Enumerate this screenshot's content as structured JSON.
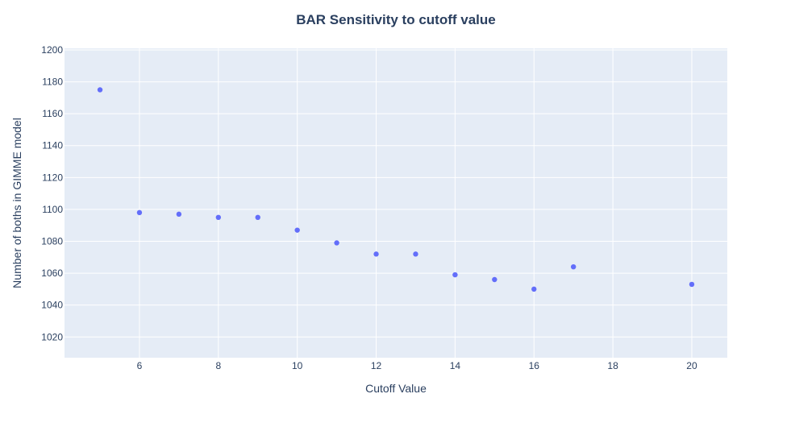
{
  "chart_data": {
    "type": "scatter",
    "title": "BAR Sensitivity to cutoff value",
    "xlabel": "Cutoff Value",
    "ylabel": "Number of boths in GIMME model",
    "xlim": [
      4.1,
      20.9
    ],
    "ylim": [
      1007,
      1201
    ],
    "xticks": [
      6,
      8,
      10,
      12,
      14,
      16,
      18,
      20
    ],
    "yticks": [
      1020,
      1040,
      1060,
      1080,
      1100,
      1120,
      1140,
      1160,
      1180,
      1200
    ],
    "grid": true,
    "series": [
      {
        "x": [
          5,
          6,
          7,
          8,
          9,
          10,
          11,
          12,
          13,
          14,
          15,
          16,
          17,
          20
        ],
        "y": [
          1175,
          1098,
          1097,
          1095,
          1095,
          1087,
          1079,
          1072,
          1072,
          1059,
          1056,
          1050,
          1064,
          1053
        ]
      }
    ],
    "colors": {
      "marker": "#636efa",
      "plot_bg": "#e5ecf6",
      "grid": "#ffffff",
      "text": "#2a3f5f"
    }
  }
}
